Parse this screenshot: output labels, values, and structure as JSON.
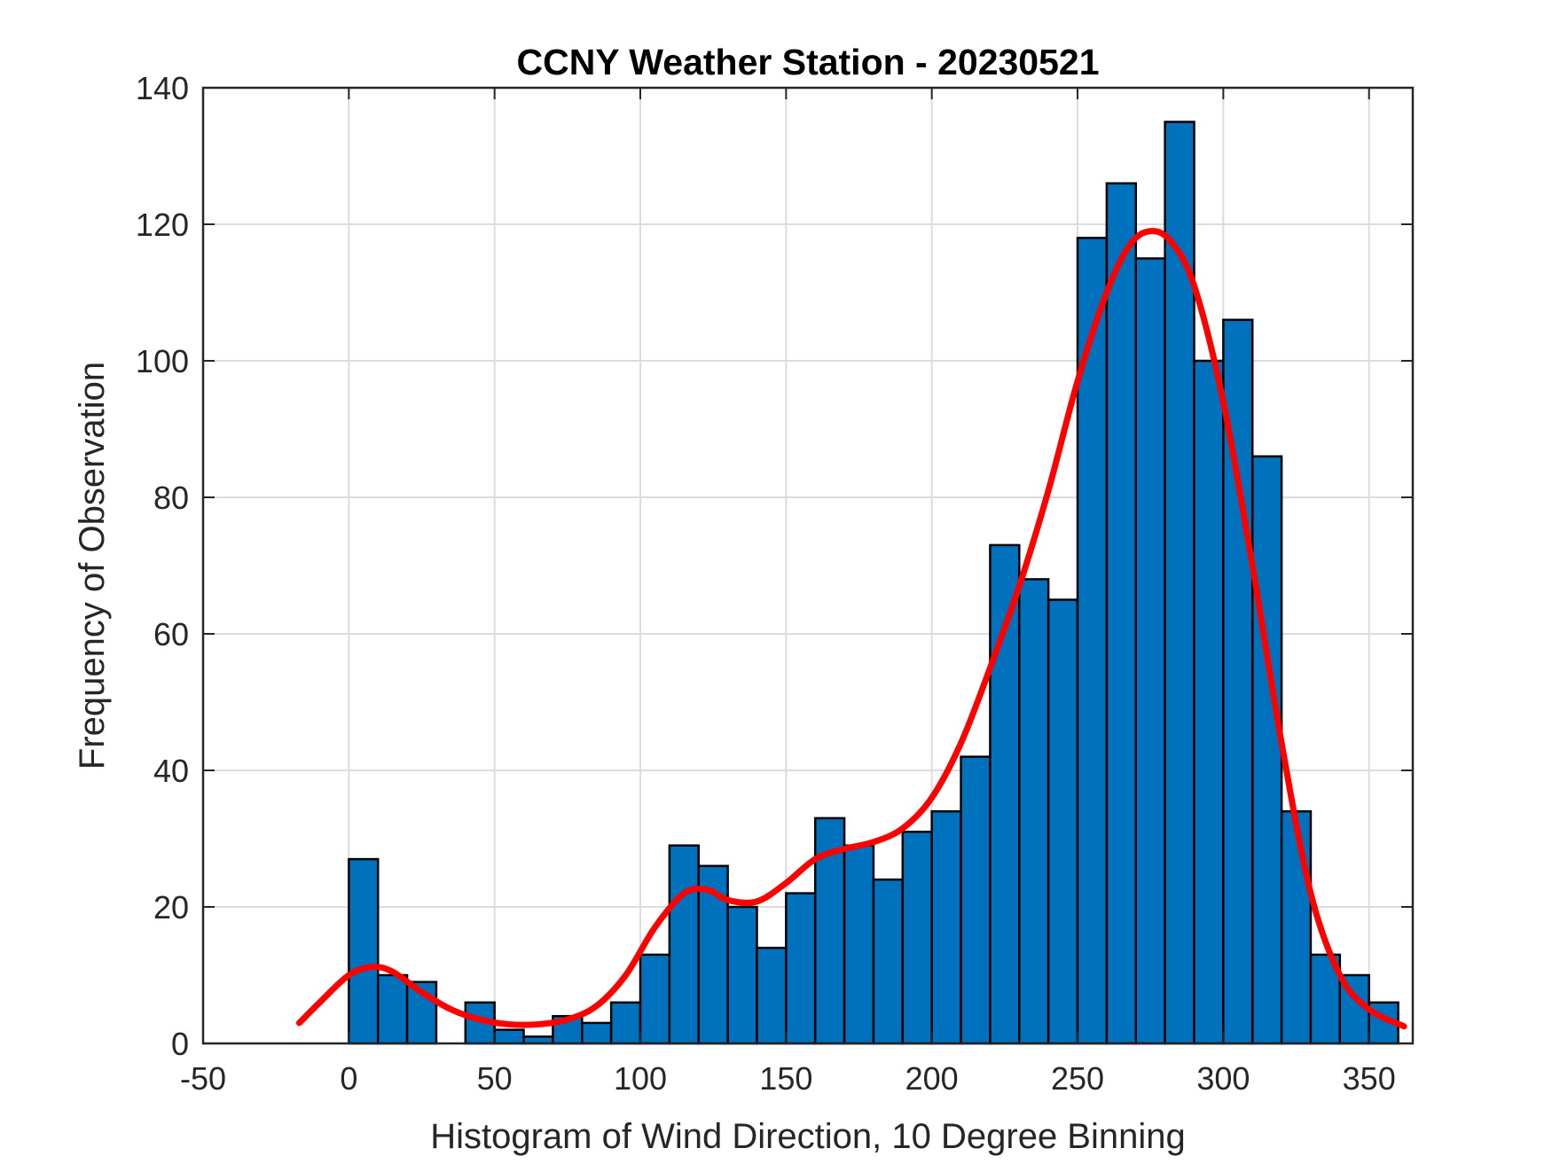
{
  "chart_data": {
    "type": "bar",
    "title": "CCNY Weather Station - 20230521",
    "xlabel": "Histogram of Wind Direction, 10 Degree Binning",
    "ylabel": "Frequency of Observation",
    "xlim": [
      -50,
      365
    ],
    "ylim": [
      0,
      140
    ],
    "xticks": [
      -50,
      0,
      50,
      100,
      150,
      200,
      250,
      300,
      350
    ],
    "yticks": [
      0,
      20,
      40,
      60,
      80,
      100,
      120,
      140
    ],
    "grid": true,
    "bin_width": 10,
    "bins": [
      {
        "x0": 0,
        "value": 27
      },
      {
        "x0": 10,
        "value": 10
      },
      {
        "x0": 20,
        "value": 9
      },
      {
        "x0": 30,
        "value": 0
      },
      {
        "x0": 40,
        "value": 6
      },
      {
        "x0": 50,
        "value": 2
      },
      {
        "x0": 60,
        "value": 1
      },
      {
        "x0": 70,
        "value": 4
      },
      {
        "x0": 80,
        "value": 3
      },
      {
        "x0": 90,
        "value": 6
      },
      {
        "x0": 100,
        "value": 13
      },
      {
        "x0": 110,
        "value": 29
      },
      {
        "x0": 120,
        "value": 26
      },
      {
        "x0": 130,
        "value": 20
      },
      {
        "x0": 140,
        "value": 14
      },
      {
        "x0": 150,
        "value": 22
      },
      {
        "x0": 160,
        "value": 33
      },
      {
        "x0": 170,
        "value": 29
      },
      {
        "x0": 180,
        "value": 24
      },
      {
        "x0": 190,
        "value": 31
      },
      {
        "x0": 200,
        "value": 34
      },
      {
        "x0": 210,
        "value": 42
      },
      {
        "x0": 220,
        "value": 73
      },
      {
        "x0": 230,
        "value": 68
      },
      {
        "x0": 240,
        "value": 65
      },
      {
        "x0": 250,
        "value": 118
      },
      {
        "x0": 260,
        "value": 126
      },
      {
        "x0": 270,
        "value": 115
      },
      {
        "x0": 280,
        "value": 135
      },
      {
        "x0": 290,
        "value": 100
      },
      {
        "x0": 300,
        "value": 106
      },
      {
        "x0": 310,
        "value": 86
      },
      {
        "x0": 320,
        "value": 34
      },
      {
        "x0": 330,
        "value": 13
      },
      {
        "x0": 340,
        "value": 10
      },
      {
        "x0": 350,
        "value": 6
      }
    ],
    "fit_curve": {
      "x": [
        -17,
        -10,
        0,
        8,
        15,
        25,
        35,
        45,
        55,
        65,
        75,
        85,
        95,
        105,
        115,
        123,
        130,
        140,
        150,
        160,
        170,
        180,
        190,
        200,
        210,
        220,
        230,
        240,
        250,
        260,
        268,
        275,
        282,
        290,
        300,
        310,
        320,
        330,
        340,
        350,
        362
      ],
      "y": [
        3,
        6,
        10,
        11.2,
        10.5,
        7.5,
        5,
        3.5,
        2.8,
        2.8,
        3.5,
        5.5,
        10,
        17,
        22,
        22.5,
        21,
        20.8,
        23.5,
        27,
        28.5,
        29.5,
        31.5,
        36,
        44,
        55,
        67,
        81,
        97,
        110,
        117,
        119,
        117.5,
        111,
        94,
        70,
        44,
        22,
        10,
        5,
        2.5
      ],
      "color": "#ff0000"
    },
    "colors": {
      "bar_fill": "#0072bd",
      "bar_edge": "#000000"
    }
  }
}
